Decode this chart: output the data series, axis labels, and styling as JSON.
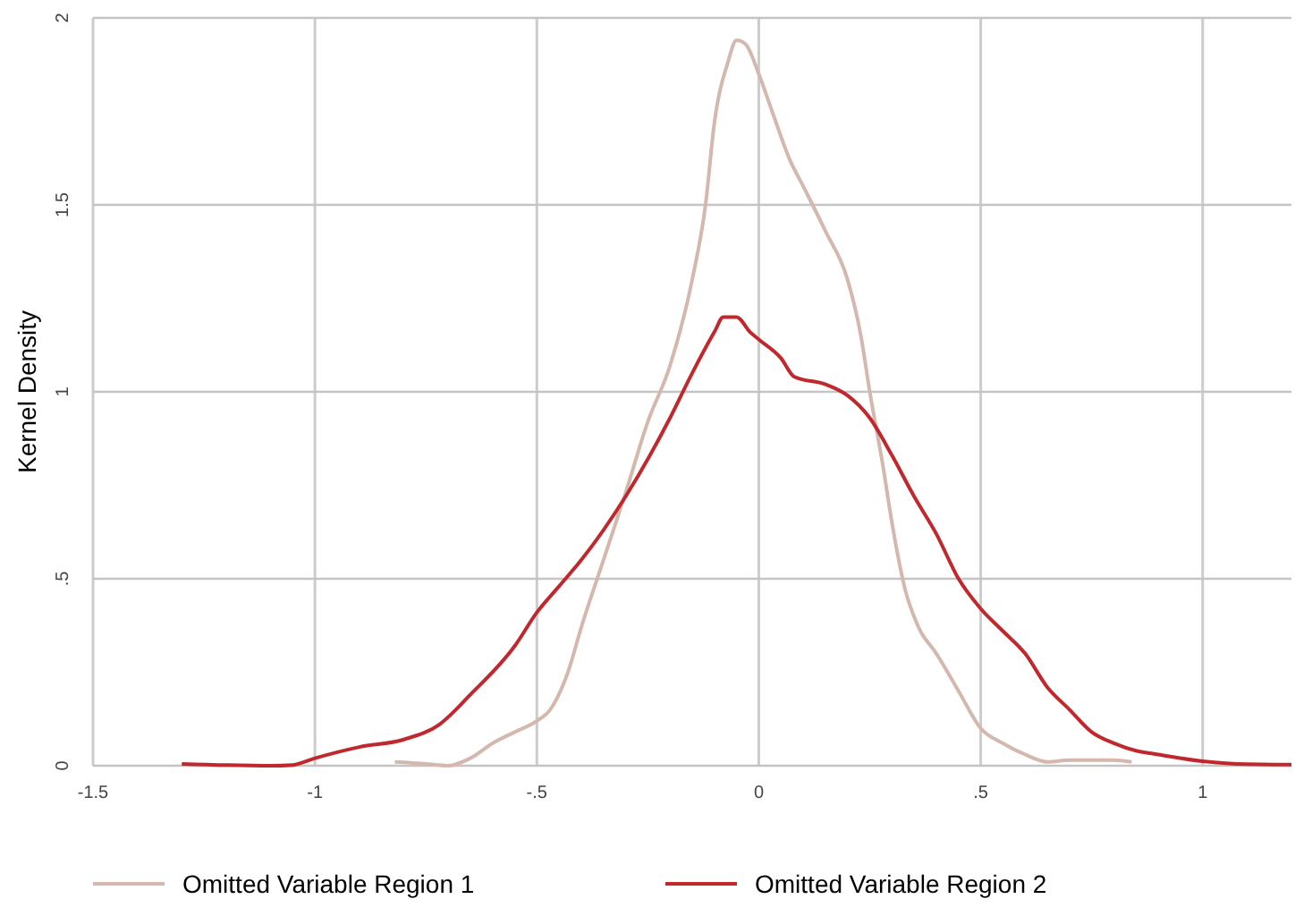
{
  "chart_data": {
    "type": "line",
    "ylabel": "Kernel Density",
    "xlim": [
      -1.5,
      1.2
    ],
    "ylim": [
      0,
      2
    ],
    "xticks": [
      -1.5,
      -1,
      {
        "value": -0.5,
        "label": "-.5"
      },
      0,
      {
        "value": 0.5,
        "label": ".5"
      },
      1
    ],
    "yticks": [
      0,
      {
        "value": 0.5,
        "label": ".5"
      },
      1,
      1.5,
      2
    ],
    "grid": true,
    "legend": "bottom",
    "marker": "none",
    "line_style": "solid",
    "series": [
      {
        "name": "Omitted Variable Region 1",
        "color": "#d4b8ae",
        "x": [
          -0.82,
          -0.75,
          -0.7,
          -0.65,
          -0.6,
          -0.55,
          -0.5,
          -0.47,
          -0.43,
          -0.4,
          -0.35,
          -0.3,
          -0.25,
          -0.2,
          -0.15,
          -0.12,
          -0.1,
          -0.07,
          -0.05,
          -0.03,
          0,
          0.03,
          0.07,
          0.1,
          0.15,
          0.2,
          0.23,
          0.25,
          0.28,
          0.3,
          0.33,
          0.36,
          0.4,
          0.45,
          0.5,
          0.55,
          0.6,
          0.65,
          0.7,
          0.8,
          0.84
        ],
        "values": [
          0.01,
          0.005,
          0,
          0.02,
          0.06,
          0.09,
          0.12,
          0.15,
          0.25,
          0.37,
          0.55,
          0.73,
          0.92,
          1.07,
          1.3,
          1.5,
          1.72,
          1.88,
          1.94,
          1.93,
          1.85,
          1.75,
          1.62,
          1.55,
          1.43,
          1.3,
          1.15,
          1,
          0.8,
          0.65,
          0.47,
          0.37,
          0.3,
          0.2,
          0.1,
          0.06,
          0.03,
          0.01,
          0.015,
          0.015,
          0.01
        ]
      },
      {
        "name": "Omitted Variable Region 2",
        "color": "#c0282d",
        "x": [
          -1.3,
          -1.1,
          -1.05,
          -1,
          -0.9,
          -0.8,
          -0.72,
          -0.65,
          -0.55,
          -0.5,
          -0.45,
          -0.4,
          -0.3,
          -0.2,
          -0.15,
          -0.1,
          -0.08,
          -0.05,
          -0.02,
          0,
          0.05,
          0.08,
          0.15,
          0.2,
          0.25,
          0.3,
          0.35,
          0.4,
          0.45,
          0.5,
          0.55,
          0.6,
          0.65,
          0.7,
          0.75,
          0.8,
          0.85,
          0.9,
          1,
          1.1,
          1.2
        ],
        "values": [
          0.005,
          0,
          0.002,
          0.02,
          0.05,
          0.07,
          0.11,
          0.19,
          0.32,
          0.41,
          0.48,
          0.55,
          0.72,
          0.93,
          1.05,
          1.16,
          1.2,
          1.2,
          1.16,
          1.14,
          1.09,
          1.04,
          1.02,
          0.99,
          0.93,
          0.83,
          0.72,
          0.62,
          0.5,
          0.42,
          0.36,
          0.3,
          0.21,
          0.15,
          0.09,
          0.06,
          0.04,
          0.03,
          0.012,
          0.004,
          0.003
        ]
      }
    ]
  }
}
